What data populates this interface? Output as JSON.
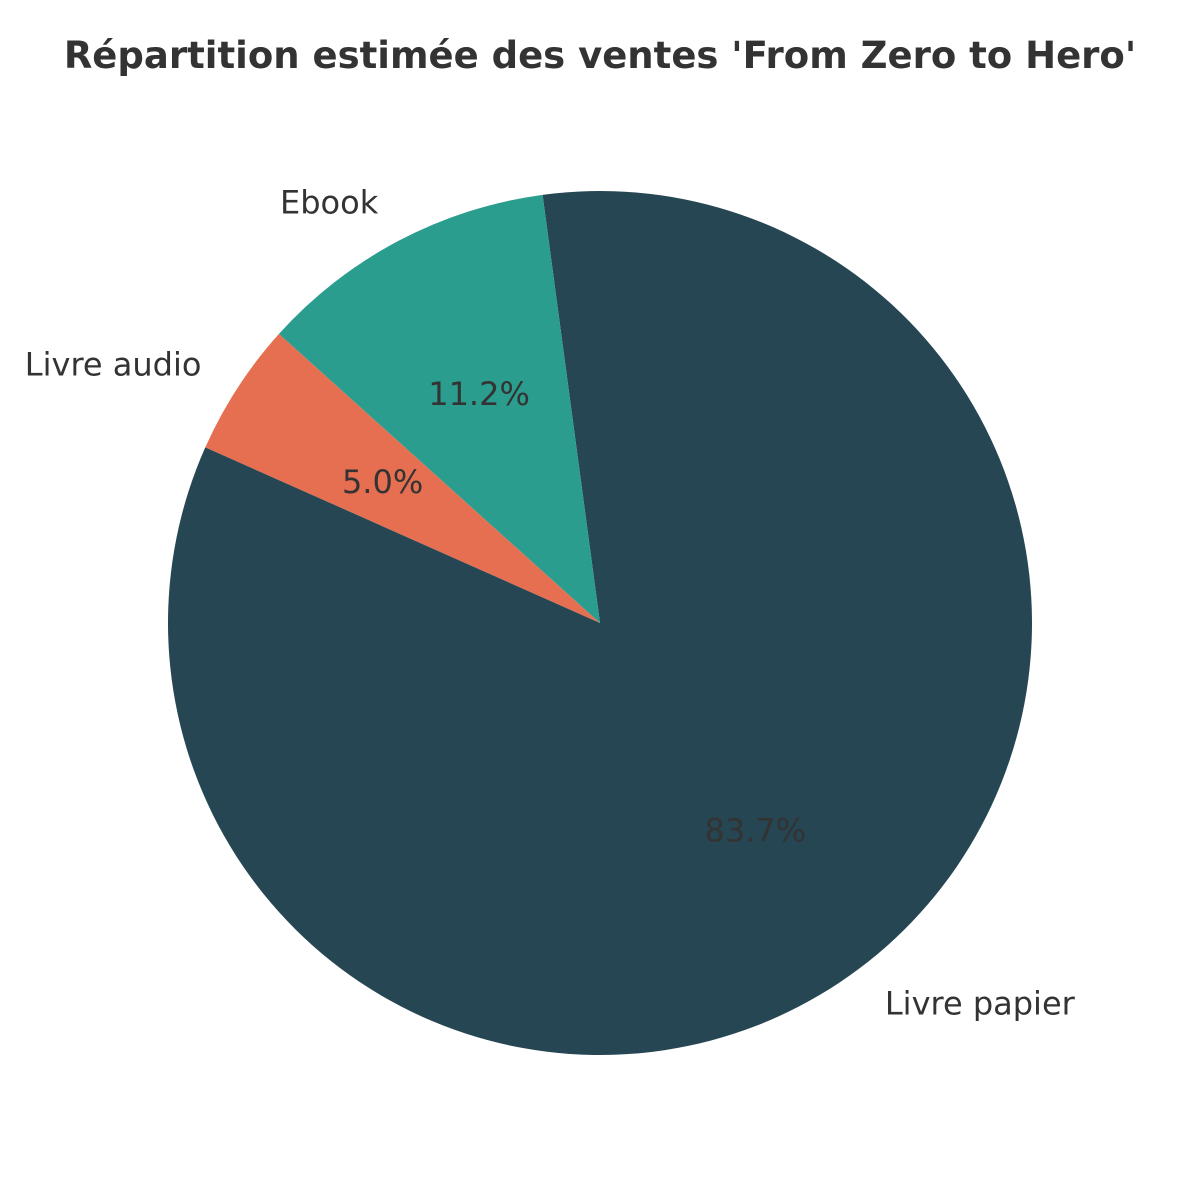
{
  "chart_data": {
    "type": "pie",
    "title": "Répartition estimée des ventes 'From Zero to Hero'",
    "start_angle_deg": 138,
    "direction": "counterclockwise",
    "slices": [
      {
        "label": "Livre audio",
        "value": 5.0,
        "pct_label": "5.0%",
        "color": "#e76f51"
      },
      {
        "label": "Livre papier",
        "value": 83.7,
        "pct_label": "83.7%",
        "color": "#264653"
      },
      {
        "label": "Ebook",
        "value": 11.2,
        "pct_label": "11.2%",
        "color": "#2a9d8f"
      }
    ]
  }
}
